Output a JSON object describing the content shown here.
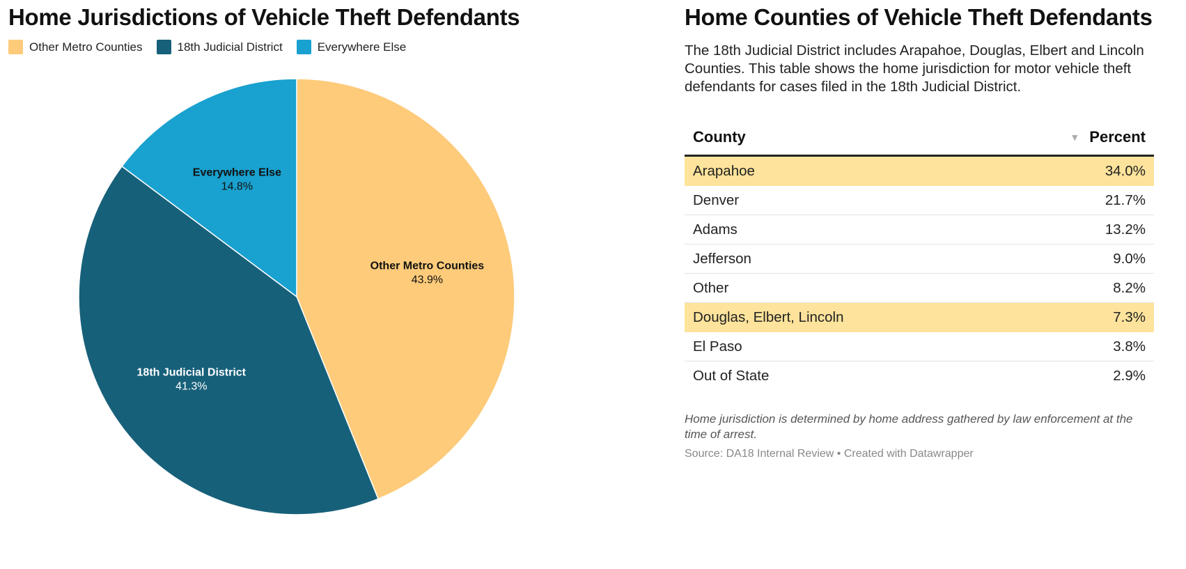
{
  "pie": {
    "title": "Home Jurisdictions of Vehicle Theft Defendants"
  },
  "chart_data": [
    {
      "type": "pie",
      "title": "Home Jurisdictions of Vehicle Theft Defendants",
      "legend_position": "top-left",
      "slices": [
        {
          "label": "Other Metro Counties",
          "value": 43.9,
          "display": "43.9%",
          "color": "#fdcb7a",
          "label_color": "#111111"
        },
        {
          "label": "18th Judicial District",
          "value": 41.3,
          "display": "41.3%",
          "color": "#17607a",
          "label_color": "#ffffff"
        },
        {
          "label": "Everywhere Else",
          "value": 14.8,
          "display": "14.8%",
          "color": "#19a1cf",
          "label_color": "#111111"
        }
      ]
    },
    {
      "type": "table",
      "title": "Home Counties of Vehicle Theft Defendants",
      "columns": [
        "County",
        "Percent"
      ],
      "rows": [
        {
          "county": "Arapahoe",
          "percent": "34.0%",
          "highlight": true
        },
        {
          "county": "Denver",
          "percent": "21.7%",
          "highlight": false
        },
        {
          "county": "Adams",
          "percent": "13.2%",
          "highlight": false
        },
        {
          "county": "Jefferson",
          "percent": "9.0%",
          "highlight": false
        },
        {
          "county": "Other",
          "percent": "8.2%",
          "highlight": false
        },
        {
          "county": "Douglas, Elbert, Lincoln",
          "percent": "7.3%",
          "highlight": true
        },
        {
          "county": "El Paso",
          "percent": "3.8%",
          "highlight": false
        },
        {
          "county": "Out of State",
          "percent": "2.9%",
          "highlight": false
        }
      ]
    }
  ],
  "table_panel": {
    "title": "Home Counties of Vehicle Theft Defendants",
    "description": "The 18th Judicial District includes Arapahoe, Douglas, Elbert and Lincoln Counties. This table shows the home jurisdiction for motor vehicle theft defendants for cases filed in the 18th Judicial District.",
    "header_county": "County",
    "header_percent": "Percent",
    "sort_icon": "sort-down-icon",
    "note": "Home jurisdiction is determined by home address gathered by law enforcement at the time of arrest.",
    "source": "Source: DA18 Internal Review • Created with Datawrapper"
  }
}
